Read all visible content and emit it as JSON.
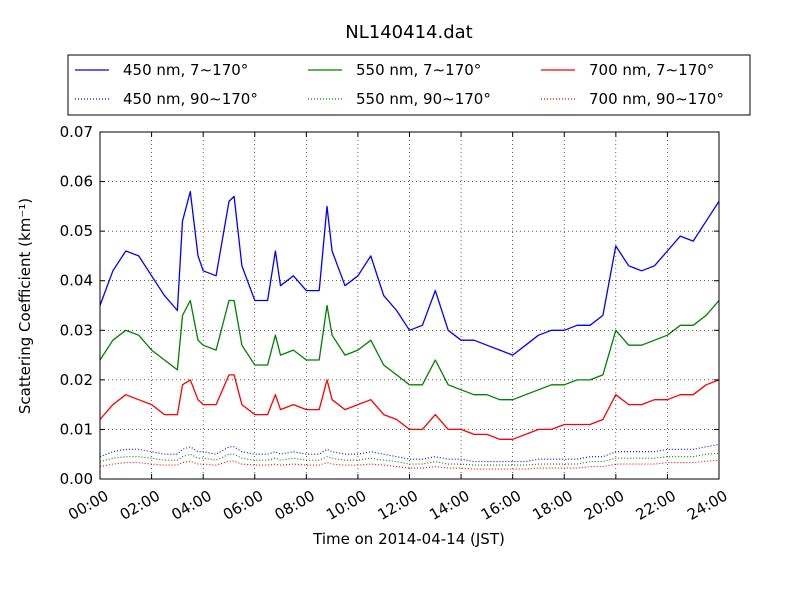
{
  "chart_data": {
    "type": "line",
    "title": "NL140414.dat",
    "xlabel": "Time on 2014-04-14 (JST)",
    "ylabel": "Scattering Coefficient (km⁻¹)",
    "xlim": [
      0,
      24
    ],
    "ylim": [
      0,
      0.07
    ],
    "x_ticks": [
      0,
      2,
      4,
      6,
      8,
      10,
      12,
      14,
      16,
      18,
      20,
      22,
      24
    ],
    "x_tick_labels": [
      "00:00",
      "02:00",
      "04:00",
      "06:00",
      "08:00",
      "10:00",
      "12:00",
      "14:00",
      "16:00",
      "18:00",
      "20:00",
      "22:00",
      "24:00"
    ],
    "y_ticks": [
      0,
      0.01,
      0.02,
      0.03,
      0.04,
      0.05,
      0.06,
      0.07
    ],
    "y_tick_labels": [
      "0.00",
      "0.01",
      "0.02",
      "0.03",
      "0.04",
      "0.05",
      "0.06",
      "0.07"
    ],
    "grid": true,
    "legend_position": "top-outside",
    "x": [
      0,
      0.5,
      1,
      1.5,
      2,
      2.5,
      3,
      3.2,
      3.5,
      3.8,
      4,
      4.5,
      5,
      5.2,
      5.5,
      6,
      6.5,
      6.8,
      7,
      7.5,
      8,
      8.5,
      8.8,
      9,
      9.5,
      10,
      10.5,
      11,
      11.5,
      12,
      12.5,
      13,
      13.5,
      14,
      14.5,
      15,
      15.5,
      16,
      16.5,
      17,
      17.5,
      18,
      18.5,
      19,
      19.5,
      20,
      20.5,
      21,
      21.5,
      22,
      22.5,
      23,
      23.5,
      24
    ],
    "series": [
      {
        "name": "450 nm, 7∼170°",
        "color": "#0000ff",
        "style": "solid",
        "values": [
          0.035,
          0.042,
          0.046,
          0.045,
          0.041,
          0.037,
          0.034,
          0.052,
          0.058,
          0.045,
          0.042,
          0.041,
          0.056,
          0.057,
          0.043,
          0.036,
          0.036,
          0.046,
          0.039,
          0.041,
          0.038,
          0.038,
          0.055,
          0.046,
          0.039,
          0.041,
          0.045,
          0.037,
          0.034,
          0.03,
          0.031,
          0.038,
          0.03,
          0.028,
          0.028,
          0.027,
          0.026,
          0.025,
          0.027,
          0.029,
          0.03,
          0.03,
          0.031,
          0.031,
          0.033,
          0.047,
          0.043,
          0.042,
          0.043,
          0.046,
          0.049,
          0.048,
          0.052,
          0.056
        ]
      },
      {
        "name": "550 nm, 7∼170°",
        "color": "#008000",
        "style": "solid",
        "values": [
          0.024,
          0.028,
          0.03,
          0.029,
          0.026,
          0.024,
          0.022,
          0.033,
          0.036,
          0.028,
          0.027,
          0.026,
          0.036,
          0.036,
          0.027,
          0.023,
          0.023,
          0.029,
          0.025,
          0.026,
          0.024,
          0.024,
          0.035,
          0.029,
          0.025,
          0.026,
          0.028,
          0.023,
          0.021,
          0.019,
          0.019,
          0.024,
          0.019,
          0.018,
          0.017,
          0.017,
          0.016,
          0.016,
          0.017,
          0.018,
          0.019,
          0.019,
          0.02,
          0.02,
          0.021,
          0.03,
          0.027,
          0.027,
          0.028,
          0.029,
          0.031,
          0.031,
          0.033,
          0.036
        ]
      },
      {
        "name": "700 nm, 7∼170°",
        "color": "#ff0000",
        "style": "solid",
        "values": [
          0.012,
          0.015,
          0.017,
          0.016,
          0.015,
          0.013,
          0.013,
          0.019,
          0.02,
          0.016,
          0.015,
          0.015,
          0.021,
          0.021,
          0.015,
          0.013,
          0.013,
          0.017,
          0.014,
          0.015,
          0.014,
          0.014,
          0.02,
          0.016,
          0.014,
          0.015,
          0.016,
          0.013,
          0.012,
          0.01,
          0.01,
          0.013,
          0.01,
          0.01,
          0.009,
          0.009,
          0.008,
          0.008,
          0.009,
          0.01,
          0.01,
          0.011,
          0.011,
          0.011,
          0.012,
          0.017,
          0.015,
          0.015,
          0.016,
          0.016,
          0.017,
          0.017,
          0.019,
          0.02
        ]
      },
      {
        "name": "450 nm, 90∼170°",
        "color": "#0000ff",
        "style": "dotted",
        "values": [
          0.0045,
          0.0055,
          0.006,
          0.006,
          0.0055,
          0.005,
          0.005,
          0.006,
          0.0065,
          0.0055,
          0.0055,
          0.005,
          0.0065,
          0.0065,
          0.0055,
          0.005,
          0.005,
          0.0055,
          0.005,
          0.0055,
          0.005,
          0.005,
          0.006,
          0.0055,
          0.005,
          0.005,
          0.0055,
          0.005,
          0.0045,
          0.004,
          0.004,
          0.0045,
          0.004,
          0.004,
          0.0035,
          0.0035,
          0.0035,
          0.0035,
          0.0035,
          0.004,
          0.004,
          0.004,
          0.004,
          0.0045,
          0.0045,
          0.0055,
          0.0055,
          0.0055,
          0.0055,
          0.006,
          0.006,
          0.006,
          0.0065,
          0.007
        ]
      },
      {
        "name": "550 nm, 90∼170°",
        "color": "#008000",
        "style": "dotted",
        "values": [
          0.0035,
          0.0042,
          0.0045,
          0.0045,
          0.0042,
          0.0038,
          0.0038,
          0.0045,
          0.005,
          0.0042,
          0.0042,
          0.0038,
          0.005,
          0.005,
          0.0042,
          0.0038,
          0.0038,
          0.0042,
          0.0038,
          0.0042,
          0.0038,
          0.0038,
          0.0045,
          0.0042,
          0.0038,
          0.0038,
          0.0042,
          0.0038,
          0.0035,
          0.003,
          0.003,
          0.0035,
          0.003,
          0.003,
          0.0028,
          0.0028,
          0.0028,
          0.0028,
          0.0028,
          0.003,
          0.003,
          0.003,
          0.003,
          0.0035,
          0.0035,
          0.0042,
          0.0042,
          0.0042,
          0.0042,
          0.0045,
          0.0045,
          0.0045,
          0.005,
          0.0052
        ]
      },
      {
        "name": "700 nm, 90∼170°",
        "color": "#ff0000",
        "style": "dotted",
        "values": [
          0.0025,
          0.003,
          0.0033,
          0.0033,
          0.003,
          0.0028,
          0.0028,
          0.0033,
          0.0036,
          0.003,
          0.003,
          0.0028,
          0.0036,
          0.0036,
          0.003,
          0.0028,
          0.0028,
          0.003,
          0.0028,
          0.003,
          0.0028,
          0.0028,
          0.0033,
          0.003,
          0.0028,
          0.0028,
          0.003,
          0.0028,
          0.0025,
          0.0022,
          0.0022,
          0.0025,
          0.0022,
          0.0022,
          0.002,
          0.002,
          0.002,
          0.002,
          0.002,
          0.0022,
          0.0022,
          0.0022,
          0.0022,
          0.0025,
          0.0025,
          0.003,
          0.003,
          0.003,
          0.003,
          0.0033,
          0.0033,
          0.0033,
          0.0036,
          0.0038
        ]
      }
    ]
  }
}
